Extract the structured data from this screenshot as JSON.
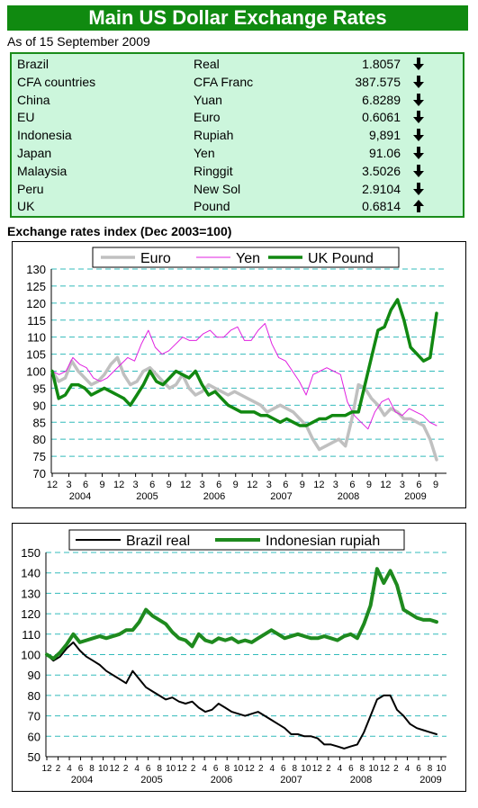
{
  "header": {
    "title": "Main US Dollar Exchange Rates",
    "as_of": "As of 15 September 2009"
  },
  "rates": [
    {
      "country": "Brazil",
      "currency": "Real",
      "value": "1.8057",
      "direction": "down"
    },
    {
      "country": "CFA countries",
      "currency": "CFA Franc",
      "value": "387.575",
      "direction": "down"
    },
    {
      "country": "China",
      "currency": "Yuan",
      "value": "6.8289",
      "direction": "down"
    },
    {
      "country": "EU",
      "currency": "Euro",
      "value": "0.6061",
      "direction": "down"
    },
    {
      "country": "Indonesia",
      "currency": "Rupiah",
      "value": "9,891",
      "direction": "down"
    },
    {
      "country": "Japan",
      "currency": "Yen",
      "value": "91.06",
      "direction": "down"
    },
    {
      "country": "Malaysia",
      "currency": "Ringgit",
      "value": "3.5026",
      "direction": "down"
    },
    {
      "country": "Peru",
      "currency": "New Sol",
      "value": "2.9104",
      "direction": "down"
    },
    {
      "country": "UK",
      "currency": "Pound",
      "value": "0.6814",
      "direction": "up"
    }
  ],
  "section_title": "Exchange rates index (Dec 2003=100)",
  "colors": {
    "title_bg": "#108a10",
    "panel_bg": "#ccf6dc",
    "euro": "#c0c0c0",
    "yen": "#e020e0",
    "pound": "#118811",
    "real": "#000000",
    "rupiah": "#1e8a1e",
    "grid": "#33bbbb"
  },
  "chart_data": [
    {
      "type": "line",
      "title": "",
      "ylim": [
        70,
        130
      ],
      "yticks": [
        70,
        75,
        80,
        85,
        90,
        95,
        100,
        105,
        110,
        115,
        120,
        125,
        130
      ],
      "x_range": [
        "2003-12",
        "2009-09"
      ],
      "month_ticks": [
        "12",
        "3",
        "6",
        "9",
        "12",
        "3",
        "6",
        "9",
        "12",
        "3",
        "6",
        "9",
        "12",
        "3",
        "6",
        "9",
        "12",
        "3",
        "6",
        "9",
        "12",
        "3",
        "6",
        "9"
      ],
      "year_labels": [
        "2004",
        "2005",
        "2006",
        "2007",
        "2008",
        "2009"
      ],
      "grid": true,
      "legend_position": "top",
      "series": [
        {
          "name": "Euro",
          "color": "#c0c0c0",
          "values": [
            100,
            97,
            98,
            103,
            100,
            98,
            96,
            97,
            99,
            102,
            104,
            99,
            96,
            97,
            100,
            101,
            99,
            97,
            95,
            96,
            99,
            95,
            93,
            94,
            96,
            95,
            94,
            93,
            94,
            93,
            92,
            91,
            90,
            88,
            89,
            90,
            89,
            88,
            86,
            84,
            80,
            77,
            78,
            79,
            80,
            78,
            86,
            96,
            95,
            92,
            90,
            87,
            89,
            88,
            86,
            86,
            85,
            84,
            80,
            74
          ]
        },
        {
          "name": "Yen",
          "color": "#e020e0",
          "values": [
            100,
            99,
            100,
            104,
            102,
            101,
            98,
            97,
            98,
            100,
            102,
            104,
            103,
            108,
            112,
            107,
            105,
            106,
            108,
            110,
            109,
            109,
            111,
            112,
            110,
            110,
            112,
            113,
            109,
            109,
            112,
            114,
            108,
            104,
            103,
            100,
            97,
            93,
            99,
            100,
            101,
            100,
            99,
            91,
            87,
            85,
            83,
            88,
            91,
            92,
            88,
            87,
            89,
            88,
            87,
            85,
            84
          ]
        },
        {
          "name": "UK Pound",
          "color": "#118811",
          "values": [
            100,
            92,
            93,
            96,
            96,
            95,
            93,
            94,
            95,
            94,
            93,
            92,
            90,
            93,
            96,
            100,
            97,
            96,
            98,
            100,
            99,
            98,
            100,
            96,
            93,
            94,
            92,
            90,
            89,
            88,
            88,
            88,
            87,
            87,
            86,
            85,
            86,
            85,
            84,
            84,
            85,
            86,
            86,
            87,
            87,
            87,
            88,
            88,
            96,
            104,
            112,
            113,
            118,
            121,
            115,
            107,
            105,
            103,
            104,
            117
          ]
        }
      ]
    },
    {
      "type": "line",
      "title": "",
      "ylim": [
        50,
        150
      ],
      "yticks": [
        50,
        60,
        70,
        80,
        90,
        100,
        110,
        120,
        130,
        140,
        150
      ],
      "x_range": [
        "2003-12",
        "2009-10"
      ],
      "month_ticks": [
        "12",
        "2",
        "4",
        "6",
        "8",
        "10",
        "12",
        "2",
        "4",
        "6",
        "8",
        "10",
        "12",
        "2",
        "4",
        "6",
        "8",
        "10",
        "12",
        "2",
        "4",
        "6",
        "8",
        "10",
        "12",
        "2",
        "4",
        "6",
        "8",
        "10",
        "12",
        "2",
        "4",
        "6",
        "8",
        "10"
      ],
      "year_labels": [
        "2004",
        "2005",
        "2006",
        "2007",
        "2008",
        "2009"
      ],
      "grid": true,
      "legend_position": "top",
      "series": [
        {
          "name": "Brazil real",
          "color": "#000000",
          "values": [
            100,
            97,
            99,
            103,
            106,
            102,
            99,
            97,
            95,
            92,
            90,
            88,
            86,
            92,
            88,
            84,
            82,
            80,
            78,
            79,
            77,
            76,
            77,
            74,
            72,
            73,
            76,
            74,
            72,
            71,
            70,
            71,
            72,
            70,
            68,
            66,
            64,
            61,
            61,
            60,
            60,
            59,
            56,
            56,
            55,
            54,
            55,
            56,
            62,
            70,
            78,
            80,
            80,
            73,
            70,
            66,
            64,
            63,
            62,
            61
          ]
        },
        {
          "name": "Indonesian rupiah",
          "color": "#1e8a1e",
          "values": [
            100,
            98,
            101,
            105,
            110,
            106,
            107,
            108,
            109,
            108,
            109,
            110,
            112,
            112,
            116,
            122,
            119,
            117,
            115,
            111,
            108,
            107,
            104,
            110,
            107,
            106,
            108,
            107,
            108,
            106,
            107,
            106,
            108,
            110,
            112,
            110,
            108,
            109,
            110,
            109,
            108,
            108,
            109,
            108,
            107,
            109,
            110,
            108,
            115,
            124,
            142,
            135,
            141,
            134,
            122,
            120,
            118,
            117,
            117,
            116
          ]
        }
      ]
    }
  ]
}
